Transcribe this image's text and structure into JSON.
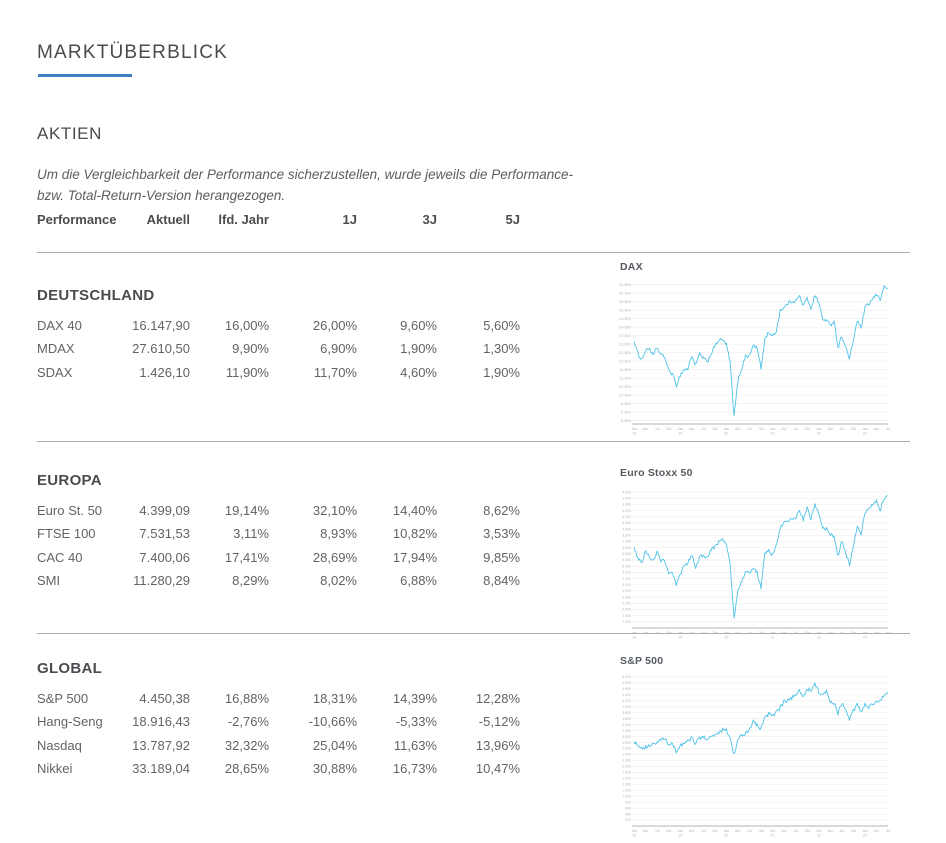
{
  "header": {
    "title": "MARKTÜBERBLICK",
    "section": "AKTIEN",
    "disclaimer_line1": "Um die Vergleichbarkeit der Performance sicherzustellen, wurde jeweils die Performance-",
    "disclaimer_line2": "bzw. Total-Return-Version herangezogen."
  },
  "colors": {
    "accent_blue": "#3e7fc1",
    "chart_line": "#4fc3e8",
    "separator": "#ababab",
    "grid_line": "#ededed",
    "axis_line": "#9a9a9a",
    "tick_label": "#b5b5b5"
  },
  "table": {
    "headers": [
      "Performance",
      "Aktuell",
      "lfd. Jahr",
      "1J",
      "3J",
      "5J"
    ],
    "groups": [
      {
        "name": "DEUTSCHLAND",
        "rows": [
          [
            "DAX 40",
            "16.147,90",
            "16,00%",
            "26,00%",
            "9,60%",
            "5,60%"
          ],
          [
            "MDAX",
            "27.610,50",
            "9,90%",
            "6,90%",
            "1,90%",
            "1,30%"
          ],
          [
            "SDAX",
            "1.426,10",
            "11,90%",
            "11,70%",
            "4,60%",
            "1,90%"
          ]
        ]
      },
      {
        "name": "EUROPA",
        "rows": [
          [
            "Euro St. 50",
            "4.399,09",
            "19,14%",
            "32,10%",
            "14,40%",
            "8,62%"
          ],
          [
            "FTSE 100",
            "7.531,53",
            "3,11%",
            "8,93%",
            "10,82%",
            "3,53%"
          ],
          [
            "CAC 40",
            "7.400,06",
            "17,41%",
            "28,69%",
            "17,94%",
            "9,85%"
          ],
          [
            "SMI",
            "11.280,29",
            "8,29%",
            "8,02%",
            "6,88%",
            "8,84%"
          ]
        ]
      },
      {
        "name": "GLOBAL",
        "rows": [
          [
            "S&P 500",
            "4.450,38",
            "16,88%",
            "18,31%",
            "14,39%",
            "12,28%"
          ],
          [
            "Hang-Seng",
            "18.916,43",
            "-2,76%",
            "-10,66%",
            "-5,33%",
            "-5,12%"
          ],
          [
            "Nasdaq",
            "13.787,92",
            "32,32%",
            "25,04%",
            "11,63%",
            "13,96%"
          ],
          [
            "Nikkei",
            "33.189,04",
            "28,65%",
            "30,88%",
            "16,73%",
            "10,47%"
          ]
        ]
      }
    ]
  },
  "chart_data": [
    {
      "type": "line",
      "title": "DAX",
      "period": "Jan 2018 - Jul 2023, monatlich",
      "legend": "none",
      "grid": true,
      "ylim": [
        8300,
        16600
      ],
      "yticks": {
        "min": 8500,
        "max": 16500,
        "step": 500
      },
      "xtick_labels": [
        "Jan 18",
        "Apr",
        "Jul",
        "Okt",
        "Jan 19",
        "Apr",
        "Jul",
        "Okt",
        "Jan 20",
        "Apr",
        "Jul",
        "Okt",
        "Jan 21",
        "Apr",
        "Jul",
        "Okt",
        "Jan 22",
        "Apr",
        "Jul",
        "Okt",
        "Jan 23",
        "Apr",
        "Jul"
      ],
      "monthly_values": [
        13190,
        12440,
        12100,
        12600,
        12770,
        12310,
        12800,
        12360,
        12250,
        11450,
        11250,
        10560,
        11170,
        11510,
        11530,
        12340,
        11730,
        12400,
        12190,
        11940,
        12430,
        12870,
        13240,
        13250,
        12980,
        11890,
        8700,
        10860,
        11590,
        12310,
        12310,
        12950,
        12760,
        11560,
        13290,
        13720,
        13430,
        13790,
        15010,
        15130,
        15420,
        15530,
        15540,
        15840,
        15260,
        15690,
        15100,
        15880,
        15470,
        14460,
        14410,
        14100,
        14390,
        12780,
        13480,
        12830,
        12110,
        13250,
        14400,
        13920,
        15130,
        15360,
        15630,
        15920,
        15660,
        16400,
        16300
      ]
    },
    {
      "type": "line",
      "title": "Euro Stoxx 50",
      "period": "Jan 2018 - Jul 2023, monatlich",
      "legend": "none",
      "grid": true,
      "ylim": [
        2300,
        4550
      ],
      "yticks": {
        "min": 2400,
        "max": 4500,
        "step": 100
      },
      "xtick_labels": [
        "Jan 18",
        "Apr",
        "Jul",
        "Okt",
        "Jan 19",
        "Apr",
        "Jul",
        "Okt",
        "Jan 20",
        "Apr",
        "Jul",
        "Okt",
        "Jan 21",
        "Apr",
        "Jul",
        "Okt",
        "Jan 22",
        "Apr",
        "Jul",
        "Okt",
        "Jan 23",
        "Apr",
        "Jul"
      ],
      "monthly_values": [
        3610,
        3440,
        3360,
        3540,
        3450,
        3400,
        3525,
        3390,
        3400,
        3200,
        3170,
        3000,
        3160,
        3300,
        3350,
        3500,
        3280,
        3450,
        3470,
        3430,
        3570,
        3600,
        3700,
        3745,
        3640,
        3330,
        2450,
        2930,
        3050,
        3230,
        3175,
        3270,
        3195,
        2960,
        3490,
        3550,
        3480,
        3640,
        3920,
        4000,
        4040,
        4060,
        4090,
        4200,
        4050,
        4250,
        4060,
        4300,
        4175,
        3920,
        3900,
        3800,
        3790,
        3450,
        3710,
        3520,
        3320,
        3600,
        3960,
        3800,
        4160,
        4240,
        4315,
        4360,
        4220,
        4400,
        4440
      ]
    },
    {
      "type": "line",
      "title": "S&P 500",
      "period": "Jan 2018 - Jul 2023, monatlich",
      "legend": "none",
      "grid": true,
      "ylim": [
        0,
        5000
      ],
      "yticks": {
        "min": 200,
        "max": 5000,
        "step": 200
      },
      "xtick_labels": [
        "Jan 18",
        "Apr",
        "Jul",
        "Okt",
        "Jan 19",
        "Apr",
        "Jul",
        "Okt",
        "Jan 20",
        "Apr",
        "Jul",
        "Okt",
        "Jan 21",
        "Apr",
        "Jul",
        "Okt",
        "Jan 22",
        "Apr",
        "Jul",
        "Okt",
        "Jan 23",
        "Apr",
        "Jul"
      ],
      "monthly_values": [
        2823,
        2714,
        2641,
        2648,
        2705,
        2718,
        2816,
        2902,
        2914,
        2712,
        2760,
        2507,
        2704,
        2784,
        2834,
        2946,
        2752,
        2942,
        2980,
        2926,
        2977,
        3038,
        3141,
        3231,
        3226,
        2954,
        2400,
        2912,
        3044,
        3100,
        3271,
        3500,
        3363,
        3270,
        3622,
        3756,
        3714,
        3811,
        3973,
        4181,
        4204,
        4298,
        4395,
        4523,
        4308,
        4605,
        4567,
        4766,
        4516,
        4374,
        4530,
        4132,
        4132,
        3785,
        4130,
        3955,
        3586,
        3872,
        4080,
        3840,
        4077,
        3970,
        4109,
        4169,
        4180,
        4410,
        4450
      ]
    }
  ]
}
